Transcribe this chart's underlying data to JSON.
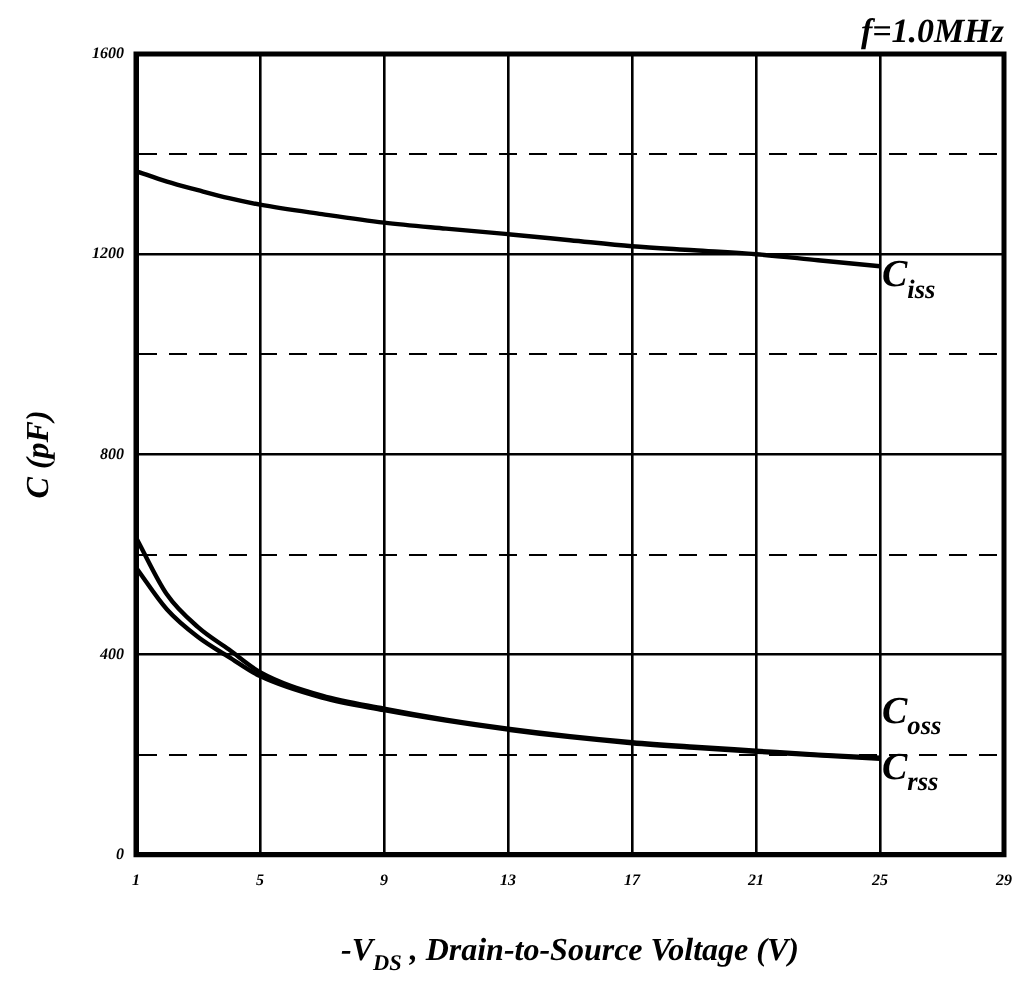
{
  "chart_data": {
    "type": "line",
    "title": "f=1.0MHz",
    "xlabel": "-V$_{DS}$ , Drain-to-Source Voltage (V)",
    "ylabel": "C (pF)",
    "x": [
      1,
      2,
      3,
      4,
      5,
      7,
      9,
      11,
      13,
      15,
      17,
      19,
      21,
      23,
      25
    ],
    "series": [
      {
        "name": "C$_{iss}$",
        "color": "#000000",
        "values": [
          1366,
          1345,
          1328,
          1312,
          1299,
          1280,
          1263,
          1251,
          1240,
          1228,
          1216,
          1208,
          1200,
          1188,
          1176
        ]
      },
      {
        "name": "C$_{oss}$",
        "color": "#000000",
        "values": [
          634,
          520,
          455,
          410,
          365,
          318,
          292,
          270,
          252,
          237,
          225,
          216,
          208,
          200,
          194
        ]
      },
      {
        "name": "C$_{rss}$",
        "color": "#000000",
        "values": [
          574,
          490,
          435,
          395,
          357,
          314,
          289,
          268,
          250,
          235,
          223,
          214,
          206,
          199,
          192
        ]
      }
    ],
    "xlim": [
      1,
      29
    ],
    "xticks": [
      1,
      5,
      9,
      13,
      17,
      21,
      25,
      29
    ],
    "ylim": [
      0,
      1600
    ],
    "yticks": [
      0,
      {
        "value": 200,
        "label": null
      },
      400,
      {
        "value": 600,
        "label": null
      },
      800,
      {
        "value": 1000,
        "label": null
      },
      1200,
      {
        "value": 1400,
        "label": null
      },
      1600
    ],
    "grid": true,
    "legend": false,
    "marker": "none",
    "line_style": "solid"
  }
}
